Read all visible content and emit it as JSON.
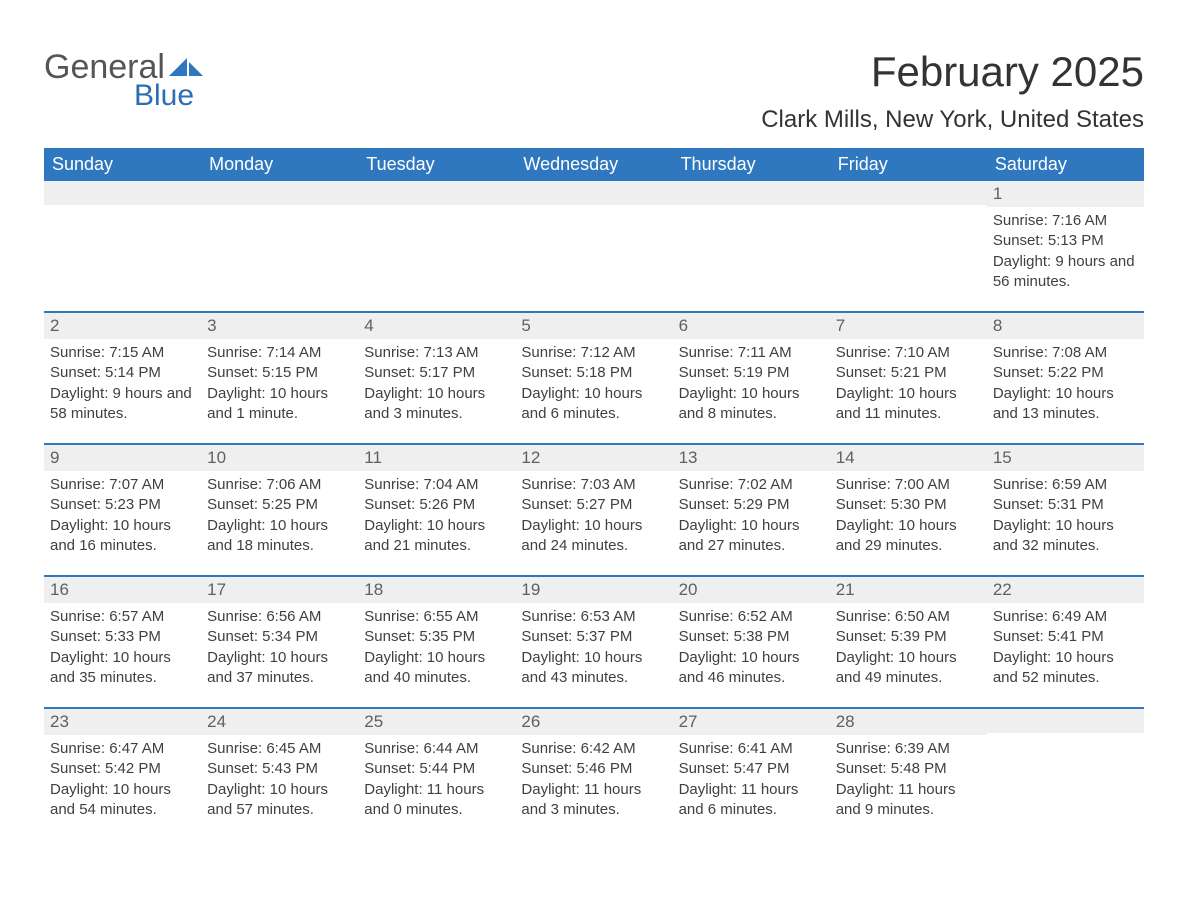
{
  "logo": {
    "word1": "General",
    "word2": "Blue",
    "mark_color": "#2f78bf",
    "text1_color": "#555555",
    "text2_color": "#2a6fb3"
  },
  "heading": {
    "title": "February 2025",
    "location": "Clark Mills, New York, United States",
    "title_fontsize": 42,
    "location_fontsize": 24
  },
  "colors": {
    "header_bg": "#2f78bf",
    "header_text": "#ffffff",
    "daynum_bg": "#efefef",
    "divider": "#2f78bf",
    "body_text": "#404040",
    "background": "#ffffff"
  },
  "fonts": {
    "body_size": 15,
    "dayhead_size": 18,
    "daynum_size": 17
  },
  "calendar": {
    "type": "table",
    "columns": [
      "Sunday",
      "Monday",
      "Tuesday",
      "Wednesday",
      "Thursday",
      "Friday",
      "Saturday"
    ],
    "weeks": [
      [
        {
          "day": "",
          "sunrise": "",
          "sunset": "",
          "daylight": ""
        },
        {
          "day": "",
          "sunrise": "",
          "sunset": "",
          "daylight": ""
        },
        {
          "day": "",
          "sunrise": "",
          "sunset": "",
          "daylight": ""
        },
        {
          "day": "",
          "sunrise": "",
          "sunset": "",
          "daylight": ""
        },
        {
          "day": "",
          "sunrise": "",
          "sunset": "",
          "daylight": ""
        },
        {
          "day": "",
          "sunrise": "",
          "sunset": "",
          "daylight": ""
        },
        {
          "day": "1",
          "sunrise": "Sunrise: 7:16 AM",
          "sunset": "Sunset: 5:13 PM",
          "daylight": "Daylight: 9 hours and 56 minutes."
        }
      ],
      [
        {
          "day": "2",
          "sunrise": "Sunrise: 7:15 AM",
          "sunset": "Sunset: 5:14 PM",
          "daylight": "Daylight: 9 hours and 58 minutes."
        },
        {
          "day": "3",
          "sunrise": "Sunrise: 7:14 AM",
          "sunset": "Sunset: 5:15 PM",
          "daylight": "Daylight: 10 hours and 1 minute."
        },
        {
          "day": "4",
          "sunrise": "Sunrise: 7:13 AM",
          "sunset": "Sunset: 5:17 PM",
          "daylight": "Daylight: 10 hours and 3 minutes."
        },
        {
          "day": "5",
          "sunrise": "Sunrise: 7:12 AM",
          "sunset": "Sunset: 5:18 PM",
          "daylight": "Daylight: 10 hours and 6 minutes."
        },
        {
          "day": "6",
          "sunrise": "Sunrise: 7:11 AM",
          "sunset": "Sunset: 5:19 PM",
          "daylight": "Daylight: 10 hours and 8 minutes."
        },
        {
          "day": "7",
          "sunrise": "Sunrise: 7:10 AM",
          "sunset": "Sunset: 5:21 PM",
          "daylight": "Daylight: 10 hours and 11 minutes."
        },
        {
          "day": "8",
          "sunrise": "Sunrise: 7:08 AM",
          "sunset": "Sunset: 5:22 PM",
          "daylight": "Daylight: 10 hours and 13 minutes."
        }
      ],
      [
        {
          "day": "9",
          "sunrise": "Sunrise: 7:07 AM",
          "sunset": "Sunset: 5:23 PM",
          "daylight": "Daylight: 10 hours and 16 minutes."
        },
        {
          "day": "10",
          "sunrise": "Sunrise: 7:06 AM",
          "sunset": "Sunset: 5:25 PM",
          "daylight": "Daylight: 10 hours and 18 minutes."
        },
        {
          "day": "11",
          "sunrise": "Sunrise: 7:04 AM",
          "sunset": "Sunset: 5:26 PM",
          "daylight": "Daylight: 10 hours and 21 minutes."
        },
        {
          "day": "12",
          "sunrise": "Sunrise: 7:03 AM",
          "sunset": "Sunset: 5:27 PM",
          "daylight": "Daylight: 10 hours and 24 minutes."
        },
        {
          "day": "13",
          "sunrise": "Sunrise: 7:02 AM",
          "sunset": "Sunset: 5:29 PM",
          "daylight": "Daylight: 10 hours and 27 minutes."
        },
        {
          "day": "14",
          "sunrise": "Sunrise: 7:00 AM",
          "sunset": "Sunset: 5:30 PM",
          "daylight": "Daylight: 10 hours and 29 minutes."
        },
        {
          "day": "15",
          "sunrise": "Sunrise: 6:59 AM",
          "sunset": "Sunset: 5:31 PM",
          "daylight": "Daylight: 10 hours and 32 minutes."
        }
      ],
      [
        {
          "day": "16",
          "sunrise": "Sunrise: 6:57 AM",
          "sunset": "Sunset: 5:33 PM",
          "daylight": "Daylight: 10 hours and 35 minutes."
        },
        {
          "day": "17",
          "sunrise": "Sunrise: 6:56 AM",
          "sunset": "Sunset: 5:34 PM",
          "daylight": "Daylight: 10 hours and 37 minutes."
        },
        {
          "day": "18",
          "sunrise": "Sunrise: 6:55 AM",
          "sunset": "Sunset: 5:35 PM",
          "daylight": "Daylight: 10 hours and 40 minutes."
        },
        {
          "day": "19",
          "sunrise": "Sunrise: 6:53 AM",
          "sunset": "Sunset: 5:37 PM",
          "daylight": "Daylight: 10 hours and 43 minutes."
        },
        {
          "day": "20",
          "sunrise": "Sunrise: 6:52 AM",
          "sunset": "Sunset: 5:38 PM",
          "daylight": "Daylight: 10 hours and 46 minutes."
        },
        {
          "day": "21",
          "sunrise": "Sunrise: 6:50 AM",
          "sunset": "Sunset: 5:39 PM",
          "daylight": "Daylight: 10 hours and 49 minutes."
        },
        {
          "day": "22",
          "sunrise": "Sunrise: 6:49 AM",
          "sunset": "Sunset: 5:41 PM",
          "daylight": "Daylight: 10 hours and 52 minutes."
        }
      ],
      [
        {
          "day": "23",
          "sunrise": "Sunrise: 6:47 AM",
          "sunset": "Sunset: 5:42 PM",
          "daylight": "Daylight: 10 hours and 54 minutes."
        },
        {
          "day": "24",
          "sunrise": "Sunrise: 6:45 AM",
          "sunset": "Sunset: 5:43 PM",
          "daylight": "Daylight: 10 hours and 57 minutes."
        },
        {
          "day": "25",
          "sunrise": "Sunrise: 6:44 AM",
          "sunset": "Sunset: 5:44 PM",
          "daylight": "Daylight: 11 hours and 0 minutes."
        },
        {
          "day": "26",
          "sunrise": "Sunrise: 6:42 AM",
          "sunset": "Sunset: 5:46 PM",
          "daylight": "Daylight: 11 hours and 3 minutes."
        },
        {
          "day": "27",
          "sunrise": "Sunrise: 6:41 AM",
          "sunset": "Sunset: 5:47 PM",
          "daylight": "Daylight: 11 hours and 6 minutes."
        },
        {
          "day": "28",
          "sunrise": "Sunrise: 6:39 AM",
          "sunset": "Sunset: 5:48 PM",
          "daylight": "Daylight: 11 hours and 9 minutes."
        },
        {
          "day": "",
          "sunrise": "",
          "sunset": "",
          "daylight": ""
        }
      ]
    ]
  }
}
